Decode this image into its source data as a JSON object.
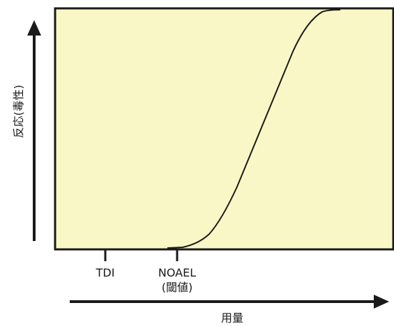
{
  "diagram": {
    "y_axis_label": "反応(毒性)",
    "x_axis_label": "用量",
    "markers": {
      "tdi": "TDI",
      "noael_line1": "NOAEL",
      "noael_line2": "(閾値)"
    }
  },
  "colors": {
    "plot_fill": "#FAF7C6",
    "line": "#1a1a1a",
    "frame": "#1a1a1a"
  }
}
